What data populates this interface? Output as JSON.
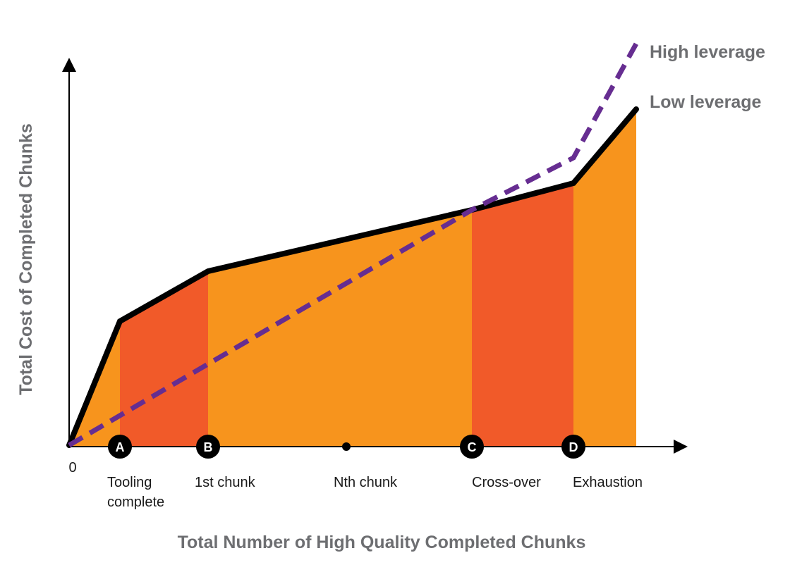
{
  "diagram": {
    "x_axis_title": "Total Number of High Quality Completed Chunks",
    "y_axis_title": "Total Cost of Completed Chunks",
    "origin_label": "0",
    "series": [
      {
        "key": "high",
        "name": "High leverage",
        "style": "dashed",
        "color": "#662d91"
      },
      {
        "key": "low",
        "name": "Low leverage",
        "style": "solid",
        "color": "#000000"
      }
    ],
    "milestones": [
      {
        "marker": "A",
        "label_lines": [
          "Tooling",
          "complete"
        ]
      },
      {
        "marker": "B",
        "label_lines": [
          "1st chunk"
        ]
      },
      {
        "marker": "",
        "label_lines": [
          "Nth chunk"
        ]
      },
      {
        "marker": "C",
        "label_lines": [
          "Cross-over"
        ]
      },
      {
        "marker": "D",
        "label_lines": [
          "Exhaustion"
        ]
      }
    ],
    "colors": {
      "fill_main": "#f7941d",
      "fill_highlight": "#f15a29",
      "axis": "#000000",
      "label_gray": "#6d6e71"
    }
  }
}
